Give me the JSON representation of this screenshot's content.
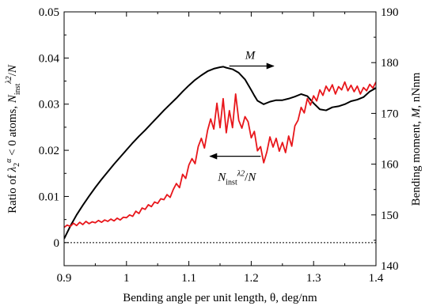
{
  "chart_data": {
    "type": "line",
    "xlabel": "Bending angle per unit length, θ, deg/nm",
    "ylabel_left": "Ratio of λ₂ᵅ < 0 atoms,  N_inst^λ2/N",
    "ylabel_right": "Bending moment,  M,  nNnm",
    "xlim": [
      0.9,
      1.4
    ],
    "ylim_left": [
      -0.005,
      0.05
    ],
    "ylim_right": [
      140,
      190
    ],
    "x_ticks": [
      "0.9",
      "1",
      "1.1",
      "1.2",
      "1.3",
      "1.4"
    ],
    "x_tick_values": [
      0.9,
      1.0,
      1.1,
      1.2,
      1.3,
      1.4
    ],
    "y_left_ticks": [
      "0",
      "0.01",
      "0.02",
      "0.03",
      "0.04",
      "0.05"
    ],
    "y_left_tick_values": [
      0,
      0.01,
      0.02,
      0.03,
      0.04,
      0.05
    ],
    "y_right_ticks": [
      "140",
      "150",
      "160",
      "170",
      "180",
      "190"
    ],
    "y_right_tick_values": [
      140,
      150,
      160,
      170,
      180,
      190
    ],
    "zero_line": {
      "y": 0,
      "style": "dotted"
    },
    "grid": false,
    "series": [
      {
        "name": "M",
        "axis": "right",
        "color": "#000000",
        "x": [
          0.9,
          0.91,
          0.92,
          0.93,
          0.94,
          0.95,
          0.96,
          0.97,
          0.98,
          0.99,
          1.0,
          1.01,
          1.02,
          1.03,
          1.04,
          1.05,
          1.06,
          1.07,
          1.08,
          1.09,
          1.1,
          1.11,
          1.12,
          1.13,
          1.14,
          1.15,
          1.155,
          1.16,
          1.17,
          1.18,
          1.19,
          1.2,
          1.205,
          1.21,
          1.22,
          1.23,
          1.24,
          1.25,
          1.26,
          1.27,
          1.28,
          1.29,
          1.3,
          1.31,
          1.32,
          1.33,
          1.34,
          1.35,
          1.36,
          1.37,
          1.38,
          1.39,
          1.4
        ],
        "y": [
          145.3,
          147.8,
          150.0,
          151.9,
          153.7,
          155.4,
          157.0,
          158.5,
          160.0,
          161.4,
          162.8,
          164.2,
          165.5,
          166.7,
          168.0,
          169.3,
          170.6,
          171.8,
          173.0,
          174.3,
          175.5,
          176.6,
          177.5,
          178.3,
          178.8,
          179.1,
          179.2,
          179.0,
          178.7,
          178.0,
          176.7,
          174.6,
          173.5,
          172.5,
          171.8,
          172.3,
          172.6,
          172.6,
          172.9,
          173.3,
          173.8,
          173.4,
          172.0,
          170.8,
          170.6,
          171.2,
          171.4,
          171.8,
          172.4,
          172.7,
          173.2,
          174.3,
          175.0
        ]
      },
      {
        "name": "N_inst^λ2/N",
        "axis": "left",
        "color": "#e8161b",
        "x": [
          0.9,
          0.905,
          0.91,
          0.915,
          0.92,
          0.925,
          0.93,
          0.935,
          0.94,
          0.945,
          0.95,
          0.955,
          0.96,
          0.965,
          0.97,
          0.975,
          0.98,
          0.985,
          0.99,
          0.995,
          1.0,
          1.005,
          1.01,
          1.015,
          1.02,
          1.025,
          1.03,
          1.035,
          1.04,
          1.045,
          1.05,
          1.055,
          1.06,
          1.065,
          1.07,
          1.075,
          1.08,
          1.085,
          1.09,
          1.095,
          1.1,
          1.105,
          1.11,
          1.115,
          1.12,
          1.125,
          1.13,
          1.135,
          1.14,
          1.145,
          1.15,
          1.155,
          1.16,
          1.165,
          1.17,
          1.175,
          1.18,
          1.185,
          1.19,
          1.195,
          1.2,
          1.205,
          1.21,
          1.215,
          1.22,
          1.225,
          1.23,
          1.235,
          1.24,
          1.245,
          1.25,
          1.255,
          1.26,
          1.265,
          1.27,
          1.275,
          1.28,
          1.285,
          1.29,
          1.295,
          1.3,
          1.305,
          1.31,
          1.315,
          1.32,
          1.325,
          1.33,
          1.335,
          1.34,
          1.345,
          1.35,
          1.355,
          1.36,
          1.365,
          1.37,
          1.375,
          1.38,
          1.385,
          1.39,
          1.395,
          1.4
        ],
        "y": [
          0.0033,
          0.0038,
          0.0035,
          0.0042,
          0.0037,
          0.0044,
          0.0039,
          0.0046,
          0.0041,
          0.0045,
          0.0043,
          0.0048,
          0.0044,
          0.0049,
          0.0046,
          0.0051,
          0.0047,
          0.0053,
          0.0049,
          0.0055,
          0.0054,
          0.006,
          0.0057,
          0.0068,
          0.0063,
          0.0075,
          0.0072,
          0.0082,
          0.0078,
          0.0088,
          0.0085,
          0.0095,
          0.0093,
          0.0104,
          0.0098,
          0.0115,
          0.0128,
          0.0119,
          0.0148,
          0.0139,
          0.0168,
          0.0182,
          0.0171,
          0.0208,
          0.0226,
          0.0205,
          0.0243,
          0.0268,
          0.0246,
          0.0302,
          0.0249,
          0.0312,
          0.0238,
          0.0286,
          0.0249,
          0.0322,
          0.0265,
          0.0248,
          0.0273,
          0.0262,
          0.0227,
          0.0241,
          0.0199,
          0.0208,
          0.0173,
          0.0196,
          0.0229,
          0.0207,
          0.0226,
          0.0198,
          0.0217,
          0.0195,
          0.0231,
          0.0209,
          0.0253,
          0.0265,
          0.0293,
          0.0281,
          0.0312,
          0.0298,
          0.0318,
          0.0307,
          0.0331,
          0.0319,
          0.0339,
          0.0328,
          0.0342,
          0.0322,
          0.0338,
          0.0331,
          0.0348,
          0.0329,
          0.0341,
          0.0327,
          0.0339,
          0.0322,
          0.0336,
          0.0329,
          0.0343,
          0.0335,
          0.0348
        ]
      }
    ],
    "annotations": [
      {
        "label": "M",
        "arrow": "right",
        "x": 1.175,
        "y_right": 181.2
      },
      {
        "label": "N_inst^λ2/N",
        "arrow": "left",
        "x": 1.21,
        "y_left": 0.0182
      }
    ]
  }
}
